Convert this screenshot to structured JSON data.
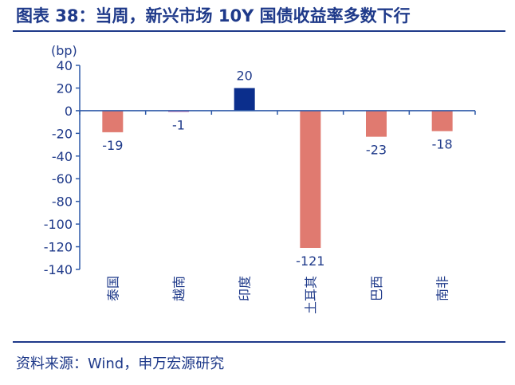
{
  "figure": {
    "title": "图表 38：当周，新兴市场 10Y 国债收益率多数下行",
    "source": "资料来源：Wind，申万宏源研究"
  },
  "colors": {
    "axis": "#2f5aa8",
    "text": "#1f3a8a",
    "negative_bar": "#e07a70",
    "positive_bar": "#0b2e8c",
    "small_negative_bar": "#c06ab0"
  },
  "chart_data": {
    "type": "bar",
    "title": "",
    "ylabel": "(bp)",
    "xlabel": "",
    "ylim": [
      -140,
      40
    ],
    "yticks": [
      40,
      20,
      0,
      -20,
      -40,
      -60,
      -80,
      -100,
      -120,
      -140
    ],
    "categories": [
      "泰国",
      "越南",
      "印度",
      "土耳其",
      "巴西",
      "南非"
    ],
    "values": [
      -19,
      -1,
      20,
      -121,
      -23,
      -18
    ],
    "data_labels": [
      "-19",
      "-1",
      "20",
      "-121",
      "-23",
      "-18"
    ],
    "grid": false,
    "legend": "none"
  }
}
